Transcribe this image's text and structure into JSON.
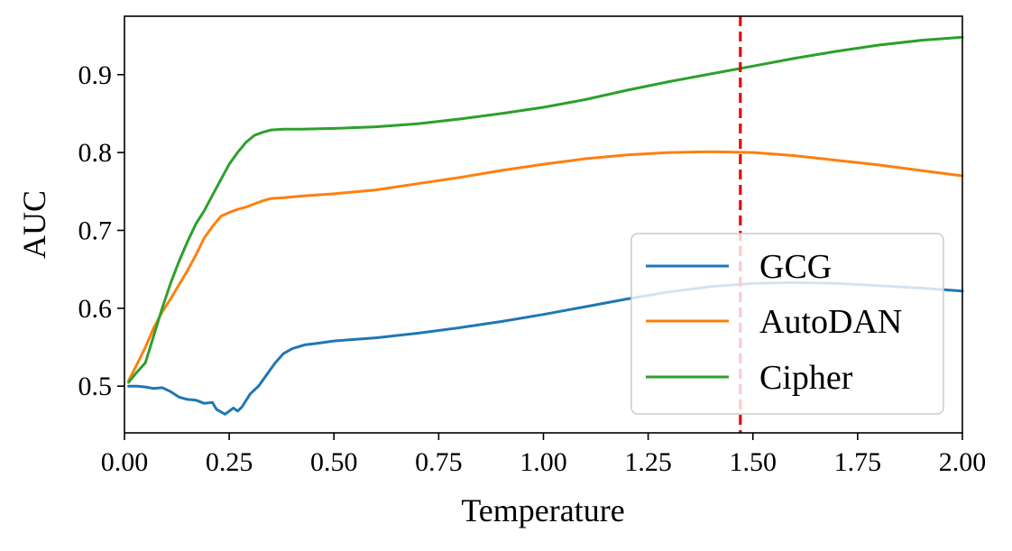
{
  "chart_data": {
    "type": "line",
    "title": "",
    "xlabel": "Temperature",
    "ylabel": "AUC",
    "xlim": [
      0.0,
      2.0
    ],
    "ylim": [
      0.44,
      0.975
    ],
    "grid": false,
    "legend_position": "lower-right",
    "xticks": [
      0.0,
      0.25,
      0.5,
      0.75,
      1.0,
      1.25,
      1.5,
      1.75,
      2.0
    ],
    "xtick_labels": [
      "0.00",
      "0.25",
      "0.50",
      "0.75",
      "1.00",
      "1.25",
      "1.50",
      "1.75",
      "2.00"
    ],
    "yticks": [
      0.5,
      0.6,
      0.7,
      0.8,
      0.9
    ],
    "ytick_labels": [
      "0.5",
      "0.6",
      "0.7",
      "0.8",
      "0.9"
    ],
    "reference_line": {
      "orientation": "vertical",
      "x": 1.47,
      "color": "#e8000b",
      "style": "dashed"
    },
    "series": [
      {
        "name": "GCG",
        "color": "#1f77b4",
        "x": [
          0.01,
          0.03,
          0.05,
          0.07,
          0.09,
          0.11,
          0.13,
          0.15,
          0.17,
          0.19,
          0.21,
          0.22,
          0.24,
          0.26,
          0.27,
          0.28,
          0.3,
          0.32,
          0.34,
          0.36,
          0.38,
          0.4,
          0.43,
          0.46,
          0.5,
          0.6,
          0.7,
          0.8,
          0.9,
          1.0,
          1.1,
          1.2,
          1.3,
          1.4,
          1.5,
          1.6,
          1.7,
          1.8,
          1.9,
          2.0
        ],
        "values": [
          0.5,
          0.5,
          0.499,
          0.497,
          0.498,
          0.493,
          0.486,
          0.483,
          0.482,
          0.478,
          0.479,
          0.47,
          0.464,
          0.472,
          0.468,
          0.473,
          0.49,
          0.5,
          0.515,
          0.53,
          0.542,
          0.548,
          0.553,
          0.555,
          0.558,
          0.562,
          0.568,
          0.575,
          0.583,
          0.592,
          0.602,
          0.612,
          0.621,
          0.628,
          0.632,
          0.633,
          0.632,
          0.629,
          0.626,
          0.622
        ]
      },
      {
        "name": "AutoDAN",
        "color": "#ff7f0e",
        "x": [
          0.01,
          0.03,
          0.05,
          0.07,
          0.09,
          0.11,
          0.13,
          0.15,
          0.17,
          0.19,
          0.21,
          0.23,
          0.25,
          0.27,
          0.29,
          0.31,
          0.33,
          0.35,
          0.38,
          0.42,
          0.5,
          0.6,
          0.7,
          0.8,
          0.9,
          1.0,
          1.1,
          1.2,
          1.3,
          1.4,
          1.5,
          1.6,
          1.7,
          1.8,
          1.9,
          2.0
        ],
        "values": [
          0.507,
          0.528,
          0.55,
          0.575,
          0.595,
          0.612,
          0.63,
          0.648,
          0.668,
          0.69,
          0.705,
          0.718,
          0.723,
          0.727,
          0.73,
          0.734,
          0.738,
          0.741,
          0.742,
          0.744,
          0.747,
          0.752,
          0.76,
          0.768,
          0.777,
          0.785,
          0.792,
          0.797,
          0.8,
          0.801,
          0.8,
          0.796,
          0.79,
          0.784,
          0.777,
          0.77
        ]
      },
      {
        "name": "Cipher",
        "color": "#2ca02c",
        "x": [
          0.01,
          0.03,
          0.05,
          0.07,
          0.09,
          0.11,
          0.13,
          0.15,
          0.17,
          0.19,
          0.21,
          0.23,
          0.25,
          0.27,
          0.29,
          0.31,
          0.33,
          0.35,
          0.38,
          0.42,
          0.5,
          0.6,
          0.7,
          0.8,
          0.9,
          1.0,
          1.1,
          1.2,
          1.3,
          1.4,
          1.5,
          1.6,
          1.7,
          1.8,
          1.9,
          2.0
        ],
        "values": [
          0.505,
          0.518,
          0.53,
          0.565,
          0.6,
          0.632,
          0.66,
          0.685,
          0.708,
          0.725,
          0.745,
          0.765,
          0.785,
          0.8,
          0.813,
          0.822,
          0.826,
          0.829,
          0.83,
          0.83,
          0.831,
          0.833,
          0.837,
          0.843,
          0.85,
          0.858,
          0.868,
          0.88,
          0.891,
          0.901,
          0.911,
          0.921,
          0.93,
          0.938,
          0.944,
          0.948
        ]
      }
    ]
  }
}
